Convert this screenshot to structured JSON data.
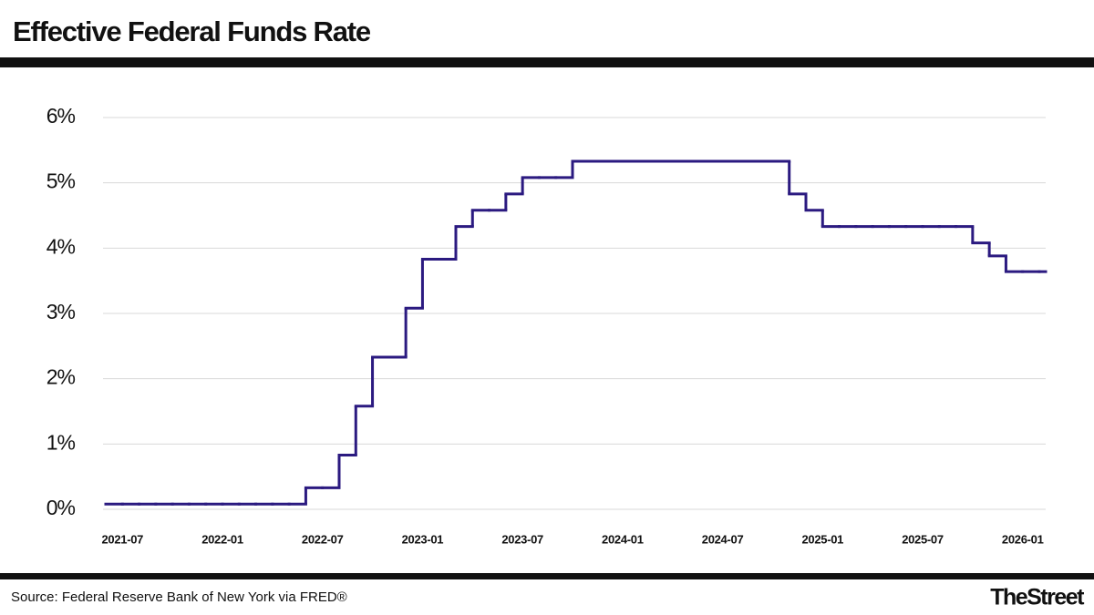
{
  "chart_data": {
    "type": "line",
    "step": true,
    "title": "Effective Federal Funds Rate",
    "source": "Source: Federal Reserve Bank of New York via FRED®",
    "brand": "TheStreet",
    "x": [
      "2021-06",
      "2021-07",
      "2021-08",
      "2021-09",
      "2021-10",
      "2021-11",
      "2021-12",
      "2022-01",
      "2022-02",
      "2022-03",
      "2022-04",
      "2022-05",
      "2022-06",
      "2022-07",
      "2022-08",
      "2022-09",
      "2022-10",
      "2022-11",
      "2022-12",
      "2023-01",
      "2023-02",
      "2023-03",
      "2023-04",
      "2023-05",
      "2023-06",
      "2023-07",
      "2023-08",
      "2023-09",
      "2023-10",
      "2023-11",
      "2023-12",
      "2024-01",
      "2024-02",
      "2024-03",
      "2024-04",
      "2024-05",
      "2024-06",
      "2024-07",
      "2024-08",
      "2024-09",
      "2024-10",
      "2024-11",
      "2024-12",
      "2025-01",
      "2025-02",
      "2025-03",
      "2025-04",
      "2025-05",
      "2025-06",
      "2025-07",
      "2025-08",
      "2025-09",
      "2025-10",
      "2025-11",
      "2025-12",
      "2026-01",
      "2026-02"
    ],
    "series": [
      {
        "name": "Effective Federal Funds Rate",
        "color": "#2b1a80",
        "values": [
          0.08,
          0.08,
          0.08,
          0.08,
          0.08,
          0.08,
          0.08,
          0.08,
          0.08,
          0.08,
          0.08,
          0.08,
          0.33,
          0.33,
          0.83,
          1.58,
          2.33,
          2.33,
          3.08,
          3.83,
          3.83,
          4.33,
          4.58,
          4.58,
          4.83,
          5.08,
          5.08,
          5.08,
          5.33,
          5.33,
          5.33,
          5.33,
          5.33,
          5.33,
          5.33,
          5.33,
          5.33,
          5.33,
          5.33,
          5.33,
          5.33,
          4.83,
          4.58,
          4.33,
          4.33,
          4.33,
          4.33,
          4.33,
          4.33,
          4.33,
          4.33,
          4.33,
          4.08,
          3.88,
          3.64,
          3.64,
          3.64
        ]
      }
    ],
    "xlim": [
      "2021-06",
      "2026-02"
    ],
    "xticks": [
      "2021-07",
      "2022-01",
      "2022-07",
      "2023-01",
      "2023-07",
      "2024-01",
      "2024-07",
      "2025-01",
      "2025-07",
      "2026-01"
    ],
    "ylim": [
      0,
      6
    ],
    "yticks": [
      {
        "value": 0,
        "label": "0%"
      },
      {
        "value": 1,
        "label": "1%"
      },
      {
        "value": 2,
        "label": "2%"
      },
      {
        "value": 3,
        "label": "3%"
      },
      {
        "value": 4,
        "label": "4%"
      },
      {
        "value": 5,
        "label": "5%"
      },
      {
        "value": 6,
        "label": "6%"
      }
    ],
    "grid": true
  }
}
